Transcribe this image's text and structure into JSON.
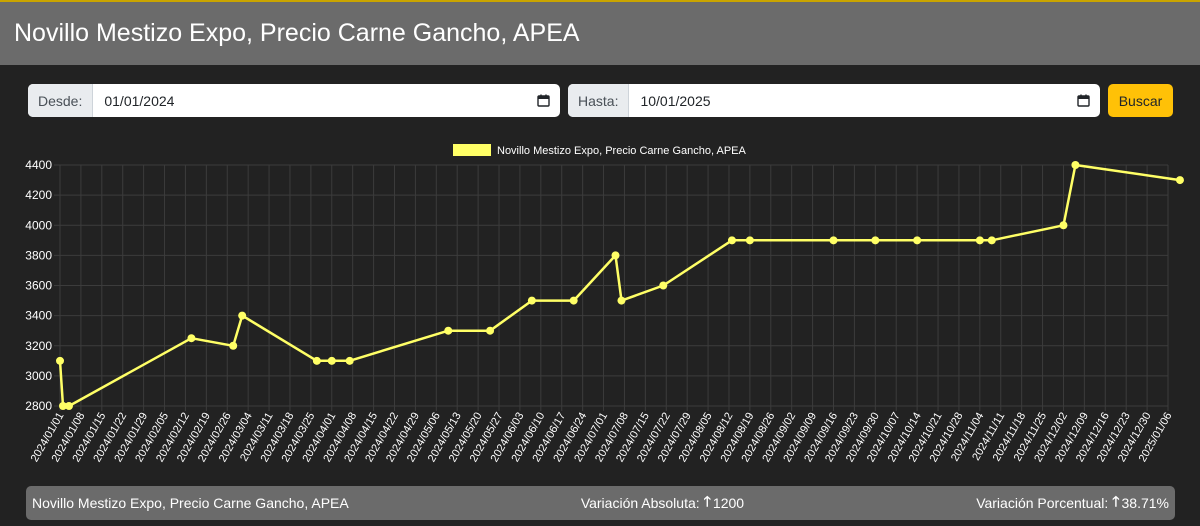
{
  "header": {
    "title": "Novillo Mestizo Expo, Precio Carne Gancho, APEA"
  },
  "filters": {
    "from_label": "Desde:",
    "from_value": "01/01/2024",
    "to_label": "Hasta:",
    "to_value": "10/01/2025",
    "search_label": "Buscar"
  },
  "summary": {
    "series_name": "Novillo Mestizo Expo, Precio Carne Gancho, APEA",
    "abs_label": "Variación Absoluta:",
    "abs_value": "1200",
    "pct_label": "Variación Porcentual:",
    "pct_value": "38.71%"
  },
  "colors": {
    "line": "#ffff66",
    "accent": "#ffc107",
    "panel": "#6b6b6b",
    "background": "#222222"
  },
  "chart_data": {
    "type": "line",
    "title": "",
    "xlabel": "",
    "ylabel": "",
    "legend": "top-center",
    "grid": true,
    "ylim": [
      2800,
      4400
    ],
    "yticks": [
      2800,
      3000,
      3200,
      3400,
      3600,
      3800,
      4000,
      4200,
      4400
    ],
    "xlim": [
      "2024/01/01",
      "2025/01/06"
    ],
    "xticks": [
      "2024/01/01",
      "2024/01/08",
      "2024/01/15",
      "2024/01/22",
      "2024/01/29",
      "2024/02/05",
      "2024/02/12",
      "2024/02/19",
      "2024/02/26",
      "2024/03/04",
      "2024/03/11",
      "2024/03/18",
      "2024/03/25",
      "2024/04/01",
      "2024/04/08",
      "2024/04/15",
      "2024/04/22",
      "2024/04/29",
      "2024/05/06",
      "2024/05/13",
      "2024/05/20",
      "2024/05/27",
      "2024/06/03",
      "2024/06/10",
      "2024/06/17",
      "2024/06/24",
      "2024/07/01",
      "2024/07/08",
      "2024/07/15",
      "2024/07/22",
      "2024/07/29",
      "2024/08/05",
      "2024/08/12",
      "2024/08/19",
      "2024/08/26",
      "2024/09/02",
      "2024/09/09",
      "2024/09/16",
      "2024/09/23",
      "2024/09/30",
      "2024/10/07",
      "2024/10/14",
      "2024/10/21",
      "2024/10/28",
      "2024/11/04",
      "2024/11/11",
      "2024/11/18",
      "2024/11/25",
      "2024/12/02",
      "2024/12/09",
      "2024/12/16",
      "2024/12/23",
      "2024/12/30",
      "2025/01/06"
    ],
    "series": [
      {
        "name": "Novillo Mestizo Expo, Precio Carne Gancho, APEA",
        "points": [
          {
            "x": "2024/01/01",
            "y": 3100
          },
          {
            "x": "2024/01/02",
            "y": 2800
          },
          {
            "x": "2024/01/04",
            "y": 2800
          },
          {
            "x": "2024/02/14",
            "y": 3250
          },
          {
            "x": "2024/02/28",
            "y": 3200
          },
          {
            "x": "2024/03/02",
            "y": 3400
          },
          {
            "x": "2024/03/27",
            "y": 3100
          },
          {
            "x": "2024/04/01",
            "y": 3100
          },
          {
            "x": "2024/04/07",
            "y": 3100
          },
          {
            "x": "2024/05/10",
            "y": 3300
          },
          {
            "x": "2024/05/24",
            "y": 3300
          },
          {
            "x": "2024/06/07",
            "y": 3500
          },
          {
            "x": "2024/06/21",
            "y": 3500
          },
          {
            "x": "2024/07/05",
            "y": 3800
          },
          {
            "x": "2024/07/07",
            "y": 3500
          },
          {
            "x": "2024/07/21",
            "y": 3600
          },
          {
            "x": "2024/08/13",
            "y": 3900
          },
          {
            "x": "2024/08/19",
            "y": 3900
          },
          {
            "x": "2024/09/16",
            "y": 3900
          },
          {
            "x": "2024/09/30",
            "y": 3900
          },
          {
            "x": "2024/10/14",
            "y": 3900
          },
          {
            "x": "2024/11/04",
            "y": 3900
          },
          {
            "x": "2024/11/08",
            "y": 3900
          },
          {
            "x": "2024/12/02",
            "y": 4000
          },
          {
            "x": "2024/12/06",
            "y": 4400
          },
          {
            "x": "2025/01/10",
            "y": 4300
          }
        ]
      }
    ]
  }
}
